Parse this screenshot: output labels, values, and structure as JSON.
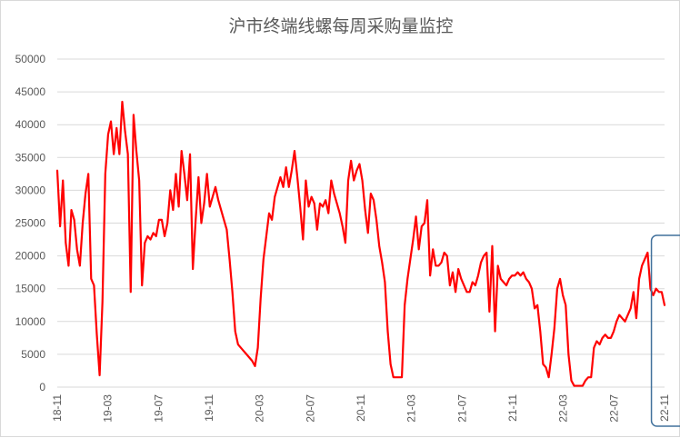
{
  "chart_data": {
    "type": "line",
    "title": "沪市终端线螺每周采购量监控",
    "xlabel": "",
    "ylabel": "",
    "ylim": [
      0,
      50000
    ],
    "yticks": [
      0,
      5000,
      10000,
      15000,
      20000,
      25000,
      30000,
      35000,
      40000,
      45000,
      50000
    ],
    "xticks": [
      "18-11",
      "19-03",
      "19-07",
      "19-11",
      "20-03",
      "20-07",
      "20-11",
      "21-03",
      "21-07",
      "21-11",
      "22-03",
      "22-07",
      "22-11"
    ],
    "grid": true,
    "legend": "none",
    "highlight": {
      "from": 211,
      "to": 222,
      "color": "#41719c",
      "label": "22-11"
    },
    "series": [
      {
        "color": "#ff0000",
        "values": [
          33000,
          24500,
          31500,
          22000,
          18500,
          27000,
          25500,
          21000,
          18500,
          25000,
          29500,
          32500,
          16500,
          15500,
          8000,
          1800,
          13000,
          32500,
          38500,
          40500,
          35500,
          39500,
          35500,
          43500,
          39000,
          35500,
          14500,
          41500,
          36000,
          31500,
          15500,
          22000,
          23000,
          22500,
          23500,
          23000,
          25500,
          25500,
          23000,
          25000,
          30000,
          27000,
          32500,
          27500,
          36000,
          32500,
          28500,
          35500,
          18000,
          25500,
          32000,
          25000,
          28000,
          32500,
          27500,
          29000,
          30500,
          28500,
          27000,
          25500,
          24000,
          19500,
          14500,
          8500,
          6500,
          6000,
          5500,
          5000,
          4500,
          4000,
          3200,
          6000,
          13500,
          19500,
          23000,
          26500,
          25500,
          29000,
          30500,
          32000,
          30500,
          33500,
          30500,
          33000,
          36000,
          32000,
          27500,
          22500,
          31500,
          27500,
          29000,
          28000,
          24000,
          28000,
          27500,
          28500,
          26500,
          31500,
          29500,
          28000,
          26500,
          24500,
          22000,
          31500,
          34500,
          31500,
          33000,
          34000,
          31500,
          27000,
          23500,
          29500,
          28500,
          25500,
          21500,
          19000,
          16000,
          8500,
          3500,
          1500,
          1500,
          1500,
          1500,
          12500,
          16500,
          19500,
          22500,
          26000,
          21000,
          24500,
          25000,
          28500,
          17000,
          21000,
          18500,
          18500,
          19000,
          20500,
          20000,
          15500,
          17500,
          14500,
          18000,
          16500,
          15500,
          14500,
          14500,
          16000,
          15500,
          17000,
          19000,
          20000,
          20500,
          11500,
          21500,
          8500,
          18500,
          16500,
          16000,
          15500,
          16500,
          17000,
          17000,
          17500,
          17000,
          17500,
          16500,
          16000,
          15000,
          12000,
          12500,
          8500,
          3500,
          3000,
          1500,
          5000,
          9000,
          15000,
          16500,
          14000,
          12500,
          5000,
          1000,
          200,
          200,
          200,
          200,
          1000,
          1500,
          1500,
          6000,
          7000,
          6500,
          7500,
          8000,
          7500,
          7500,
          8500,
          10000,
          11000,
          10500,
          10000,
          11000,
          12000,
          14500,
          10500,
          16500,
          18500,
          19500,
          20500,
          15000,
          14000,
          15000,
          14500,
          14500,
          12500
        ]
      }
    ]
  }
}
